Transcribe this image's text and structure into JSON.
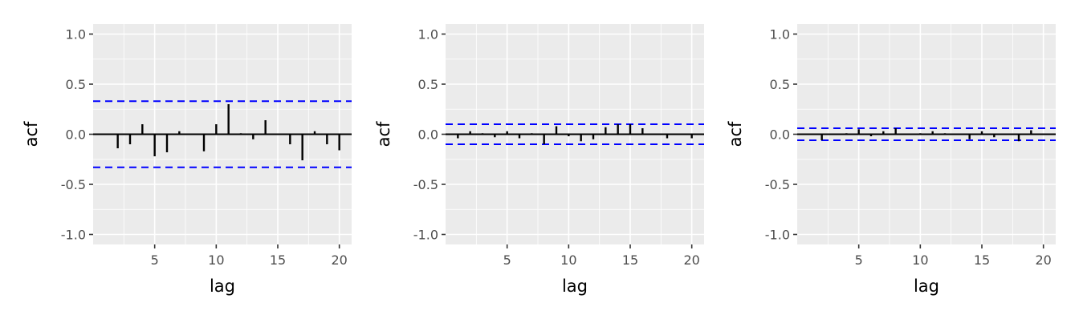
{
  "chart_data": [
    {
      "type": "bar",
      "xlabel": "lag",
      "ylabel": "acf",
      "xlim": [
        0,
        21
      ],
      "ylim": [
        -1.1,
        1.1
      ],
      "x_ticks": [
        5,
        10,
        15,
        20
      ],
      "y_ticks": [
        -1.0,
        -0.5,
        0.0,
        0.5,
        1.0
      ],
      "y_tick_labels": [
        "-1.0",
        "-0.5",
        "0.0",
        "0.5",
        "1.0"
      ],
      "confidence_bound": 0.33,
      "lags": [
        1,
        2,
        3,
        4,
        5,
        6,
        7,
        8,
        9,
        10,
        11,
        12,
        13,
        14,
        15,
        16,
        17,
        18,
        19,
        20
      ],
      "values": [
        0.0,
        -0.14,
        -0.1,
        0.1,
        -0.22,
        -0.18,
        0.03,
        0.0,
        -0.17,
        0.1,
        0.3,
        0.01,
        -0.05,
        0.14,
        0.0,
        -0.1,
        -0.26,
        0.03,
        -0.1,
        -0.16
      ],
      "colors": {
        "bars": "#000000",
        "bounds": "#0000ff",
        "panel": "#ebebeb",
        "grid": "#ffffff"
      }
    },
    {
      "type": "bar",
      "xlabel": "lag",
      "ylabel": "acf",
      "xlim": [
        0,
        21
      ],
      "ylim": [
        -1.1,
        1.1
      ],
      "x_ticks": [
        5,
        10,
        15,
        20
      ],
      "y_ticks": [
        -1.0,
        -0.5,
        0.0,
        0.5,
        1.0
      ],
      "y_tick_labels": [
        "-1.0",
        "-0.5",
        "0.0",
        "0.5",
        "1.0"
      ],
      "confidence_bound": 0.1,
      "lags": [
        1,
        2,
        3,
        4,
        5,
        6,
        7,
        8,
        9,
        10,
        11,
        12,
        13,
        14,
        15,
        16,
        17,
        18,
        19,
        20
      ],
      "values": [
        -0.04,
        0.03,
        0.01,
        -0.03,
        0.03,
        -0.04,
        0.01,
        -0.1,
        0.08,
        -0.02,
        -0.07,
        -0.05,
        0.07,
        0.1,
        0.1,
        0.06,
        0.0,
        -0.04,
        0.0,
        -0.04
      ],
      "colors": {
        "bars": "#000000",
        "bounds": "#0000ff",
        "panel": "#ebebeb",
        "grid": "#ffffff"
      }
    },
    {
      "type": "bar",
      "xlabel": "lag",
      "ylabel": "acf",
      "xlim": [
        0,
        21
      ],
      "ylim": [
        -1.1,
        1.1
      ],
      "x_ticks": [
        5,
        10,
        15,
        20
      ],
      "y_ticks": [
        -1.0,
        -0.5,
        0.0,
        0.5,
        1.0
      ],
      "y_tick_labels": [
        "-1.0",
        "-0.5",
        "0.0",
        "0.5",
        "1.0"
      ],
      "confidence_bound": 0.06,
      "lags": [
        1,
        2,
        3,
        4,
        5,
        6,
        7,
        8,
        9,
        10,
        11,
        12,
        13,
        14,
        15,
        16,
        17,
        18,
        19,
        20
      ],
      "values": [
        0.0,
        -0.06,
        0.0,
        0.01,
        0.05,
        -0.02,
        0.03,
        0.06,
        0.0,
        0.01,
        0.03,
        0.01,
        0.0,
        -0.05,
        0.03,
        -0.03,
        0.0,
        -0.07,
        0.04,
        0.0
      ],
      "colors": {
        "bars": "#000000",
        "bounds": "#0000ff",
        "panel": "#ebebeb",
        "grid": "#ffffff"
      }
    }
  ]
}
